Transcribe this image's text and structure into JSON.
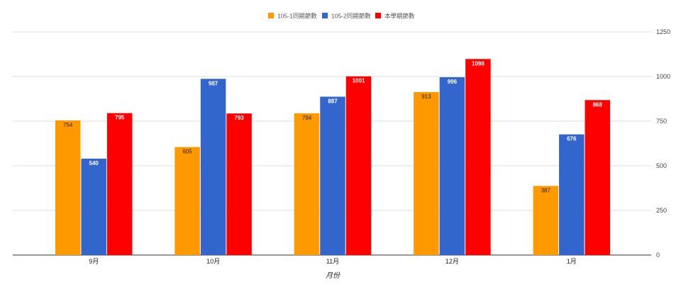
{
  "chart_data": {
    "type": "bar",
    "title": "",
    "xlabel": "月份",
    "ylabel": "",
    "categories": [
      "9月",
      "10月",
      "11月",
      "12月",
      "1月"
    ],
    "series": [
      {
        "name": "105-1同期節數",
        "color": "#ff9900",
        "values": [
          754,
          605,
          794,
          913,
          387
        ]
      },
      {
        "name": "105-2同期節數",
        "color": "#3366cc",
        "values": [
          540,
          987,
          887,
          996,
          676
        ]
      },
      {
        "name": "本學期節數",
        "color": "#ff0000",
        "values": [
          795,
          793,
          1001,
          1098,
          868
        ]
      }
    ],
    "ylim": [
      0,
      1250
    ],
    "yticks": [
      0,
      250,
      500,
      750,
      1000,
      1250
    ],
    "grid": true,
    "legend": "top-center",
    "y_axis_side": "right"
  }
}
